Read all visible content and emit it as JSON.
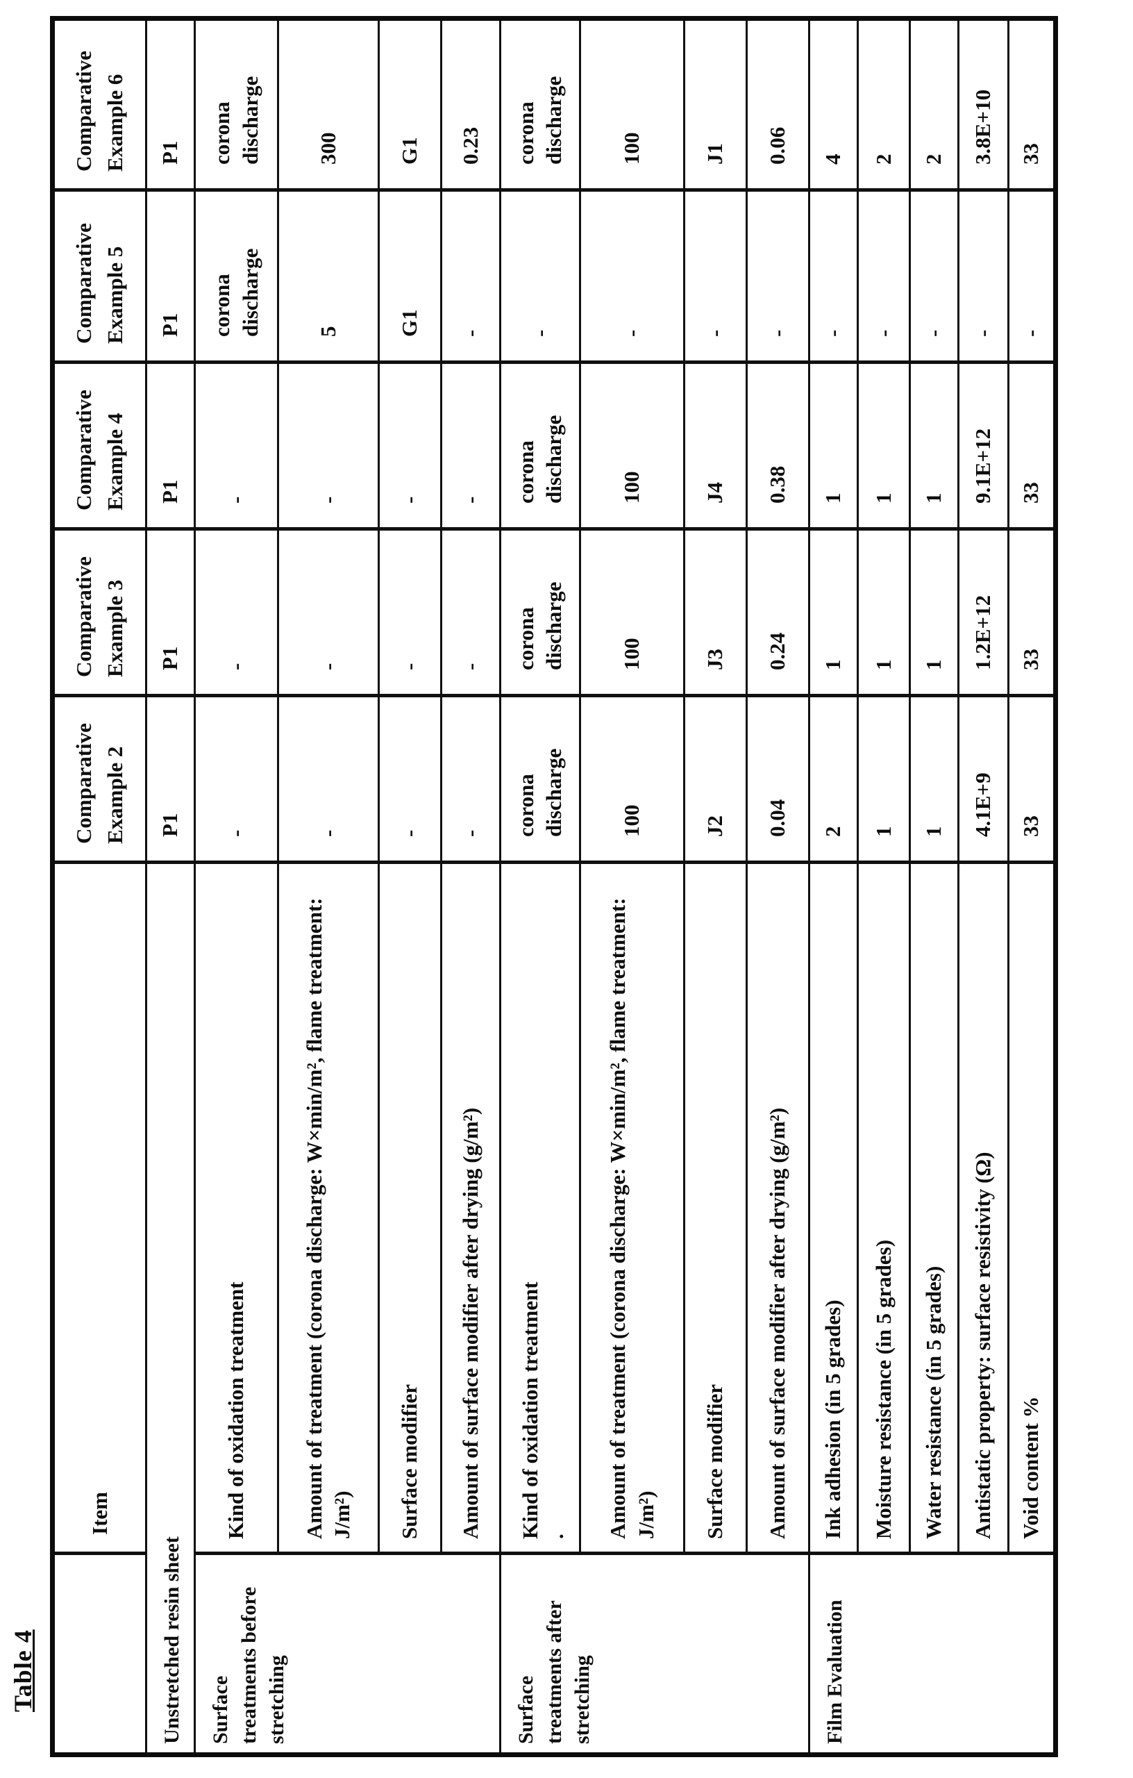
{
  "page": {
    "table_label": "Table 4",
    "ink_color": "#0d0d0d",
    "paper_color": "#ffffff"
  },
  "table": {
    "col_headers": [
      "Item",
      "Comparative Example 2",
      "Comparative Example 3",
      "Comparative Example 4",
      "Comparative Example 5",
      "Comparative Example 6"
    ],
    "groups": [
      {
        "label": "Unstretched resin sheet",
        "rows": [
          {
            "item": "",
            "values": [
              "P1",
              "P1",
              "P1",
              "P1",
              "P1"
            ]
          }
        ]
      },
      {
        "label": "Surface\ntreatments before\nstretching",
        "rows": [
          {
            "item": "Kind of oxidation treatment",
            "values": [
              "-",
              "-",
              "-",
              "corona discharge",
              "corona discharge"
            ]
          },
          {
            "item": "Amount of treatment (corona   discharge: W×min/m², flame treatment: J/m²)",
            "values": [
              "-",
              "-",
              "-",
              "5",
              "300"
            ]
          },
          {
            "item": "Surface modifier",
            "values": [
              "-",
              "-",
              "-",
              "G1",
              "G1"
            ]
          },
          {
            "item": "Amount of surface modifier after drying (g/m²)",
            "values": [
              "-",
              "-",
              "-",
              "-",
              "0.23"
            ]
          }
        ]
      },
      {
        "label": "Surface\ntreatments after\nstretching",
        "rows": [
          {
            "item": "Kind of oxidation treatment",
            "note": ".",
            "values": [
              "corona discharge",
              "corona discharge",
              "corona discharge",
              "-",
              "corona discharge"
            ]
          },
          {
            "item": "Amount of treatment (corona   discharge: W×min/m², flame treatment: J/m²)",
            "values": [
              "100",
              "100",
              "100",
              "-",
              "100"
            ]
          },
          {
            "item": "Surface modifier",
            "values": [
              "J2",
              "J3",
              "J4",
              "-",
              "J1"
            ]
          },
          {
            "item": "Amount of surface modifier after drying (g/m²)",
            "values": [
              "0.04",
              "0.24",
              "0.38",
              "-",
              "0.06"
            ]
          }
        ]
      },
      {
        "label": "Film Evaluation",
        "rows": [
          {
            "item": "Ink adhesion (in 5 grades)",
            "values": [
              "2",
              "1",
              "1",
              "-",
              "4"
            ]
          },
          {
            "item": "Moisture resistance (in 5 grades)",
            "values": [
              "1",
              "1",
              "1",
              "-",
              "2"
            ]
          },
          {
            "item": "Water resistance (in 5 grades)",
            "values": [
              "1",
              "1",
              "1",
              "-",
              "2"
            ]
          },
          {
            "item": "Antistatic property: surface   resistivity (Ω)",
            "values": [
              "4.1E+9",
              "1.2E+12",
              "9.1E+12",
              "-",
              "3.8E+10"
            ]
          },
          {
            "item": "Void content %",
            "values": [
              "33",
              "33",
              "33",
              "-",
              "33"
            ]
          }
        ]
      }
    ]
  }
}
